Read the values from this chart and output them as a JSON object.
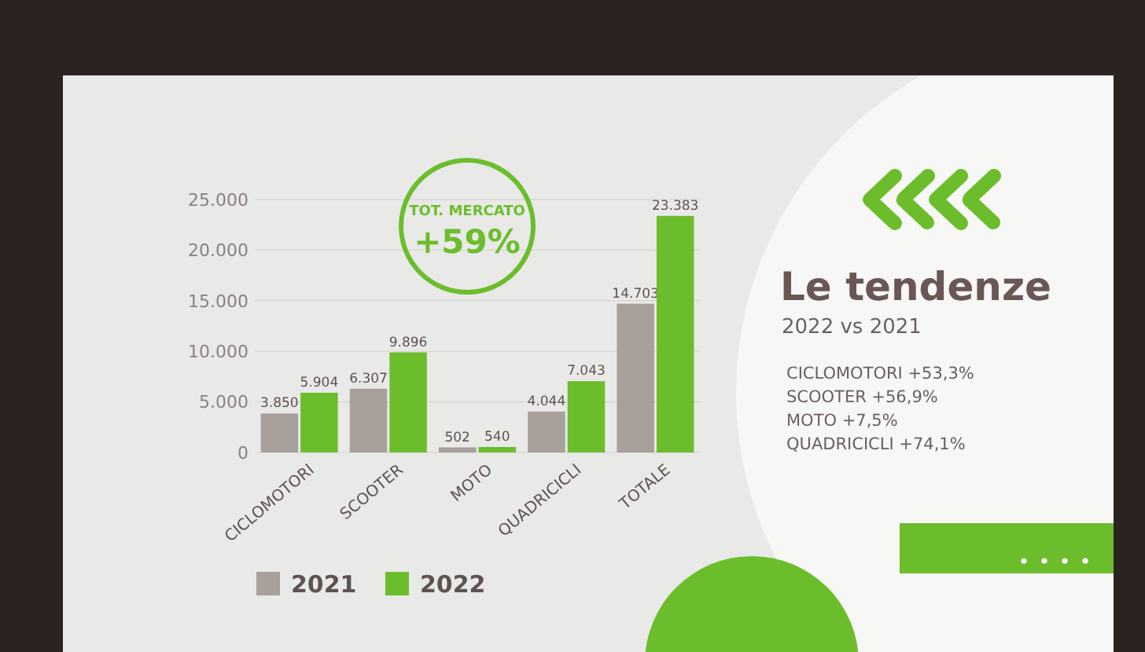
{
  "chart_data": {
    "type": "bar",
    "title": "Le tendenze",
    "subtitle": "2022 vs 2021",
    "categories": [
      "CICLOMOTORI",
      "SCOOTER",
      "MOTO",
      "QUADRICICLI",
      "TOTALE"
    ],
    "series": [
      {
        "name": "2021",
        "color": "#a8a09b",
        "values": [
          3850,
          6307,
          502,
          4044,
          14703
        ],
        "value_labels": [
          "3.850",
          "6.307",
          "502",
          "4.044",
          "14.703"
        ]
      },
      {
        "name": "2022",
        "color": "#6cbd2c",
        "values": [
          5904,
          9896,
          540,
          7043,
          23383
        ],
        "value_labels": [
          "5.904",
          "9.896",
          "540",
          "7.043",
          "23.383"
        ]
      }
    ],
    "ylim": [
      0,
      25000
    ],
    "yticks": [
      0,
      {
        "value": 5000,
        "label": "5.000"
      },
      {
        "value": 10000,
        "label": "10.000"
      },
      {
        "value": 15000,
        "label": "15.000"
      },
      {
        "value": 20000,
        "label": "20.000"
      },
      {
        "value": 25000,
        "label": "25.000"
      }
    ],
    "grid": "y",
    "legend": "bottom",
    "annotations": [
      "TOT. MERCATO",
      "+59%",
      "CICLOMOTORI +53,3%",
      "SCOOTER +56,9%",
      "MOTO +7,5%",
      "QUADRICICLI +74,1%"
    ]
  }
}
